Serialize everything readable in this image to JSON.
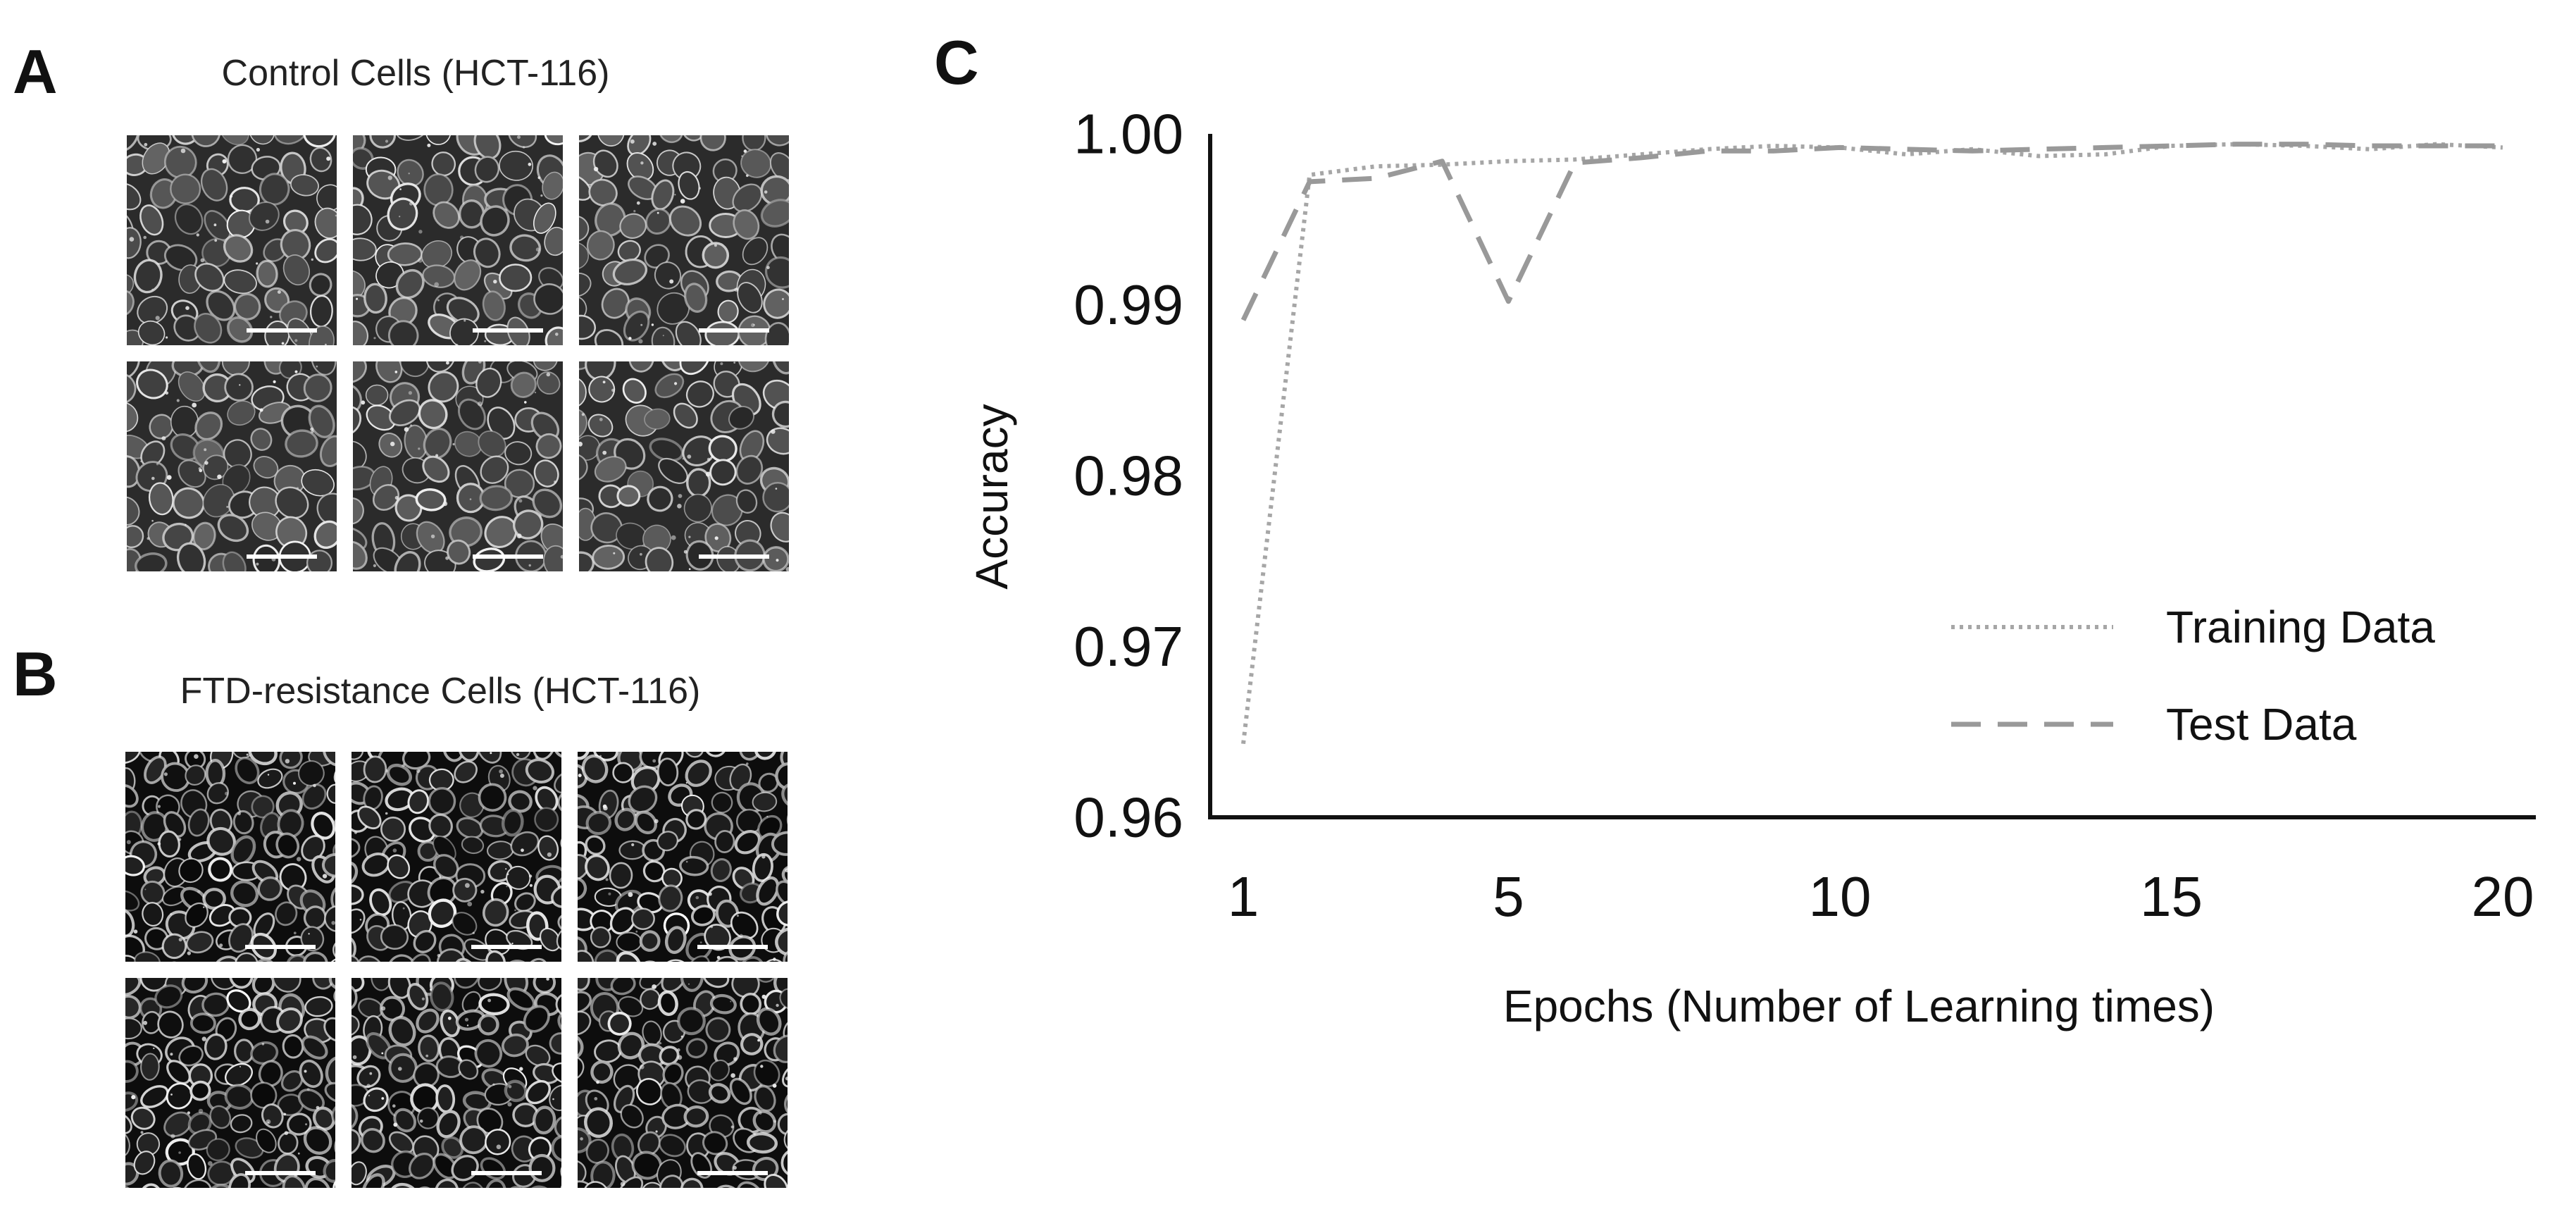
{
  "panels": {
    "a": {
      "letter": "A",
      "title": "Control Cells (HCT-116)",
      "images": [
        "control-1",
        "control-2",
        "control-3",
        "control-4",
        "control-5",
        "control-6"
      ]
    },
    "b": {
      "letter": "B",
      "title": "FTD-resistance Cells (HCT-116)",
      "images": [
        "ftd-1",
        "ftd-2",
        "ftd-3",
        "ftd-4",
        "ftd-5",
        "ftd-6"
      ]
    },
    "c": {
      "letter": "C"
    }
  },
  "chart_data": {
    "type": "line",
    "title": "",
    "xlabel": "Epochs (Number of Learning times)",
    "ylabel": "Accuracy",
    "x": [
      1,
      2,
      3,
      4,
      5,
      6,
      7,
      8,
      9,
      10,
      11,
      12,
      13,
      14,
      15,
      16,
      17,
      18,
      19,
      20
    ],
    "xticks": [
      1,
      5,
      10,
      15,
      20
    ],
    "xtick_labels": [
      "1",
      "5",
      "10",
      "15",
      "20"
    ],
    "yticks": [
      0.96,
      0.97,
      0.98,
      0.99,
      1.0
    ],
    "ytick_labels": [
      "0.96",
      "0.97",
      "0.98",
      "0.99",
      "1.00"
    ],
    "xlim": [
      0.5,
      20.5
    ],
    "ylim": [
      0.96,
      1.0
    ],
    "grid": false,
    "legend": "bottom-right",
    "series": [
      {
        "name": "Training Data",
        "style": "dotted",
        "color": "#a6a6a6",
        "values": [
          0.9643,
          0.9976,
          0.9981,
          0.9982,
          0.9984,
          0.9985,
          0.9988,
          0.9991,
          0.9993,
          0.9992,
          0.9988,
          0.9991,
          0.9987,
          0.9988,
          0.9993,
          0.9994,
          0.9993,
          0.9991,
          0.9994,
          0.9992
        ]
      },
      {
        "name": "Test Data",
        "style": "dashed",
        "color": "#999999",
        "values": [
          0.9891,
          0.9972,
          0.9974,
          0.9984,
          0.9902,
          0.9983,
          0.9986,
          0.999,
          0.999,
          0.9992,
          0.9991,
          0.999,
          0.9991,
          0.9992,
          0.9993,
          0.9994,
          0.9994,
          0.9993,
          0.9993,
          0.9993
        ]
      }
    ]
  }
}
